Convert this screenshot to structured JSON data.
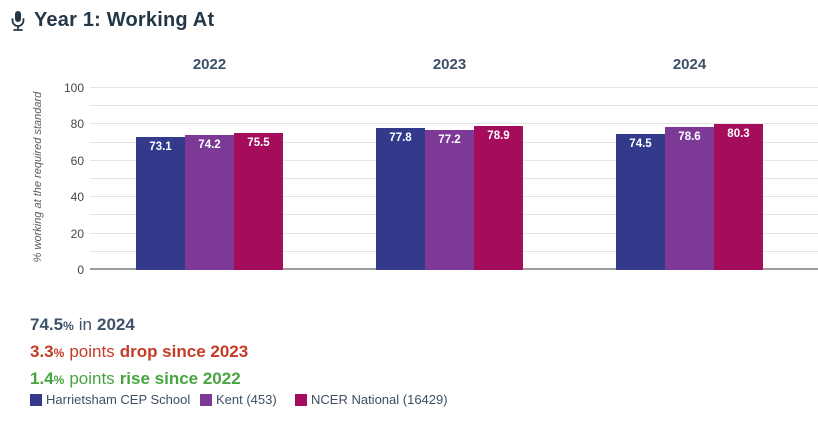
{
  "header": {
    "title": "Year 1: Working At",
    "icon": "microphone-icon"
  },
  "summary": {
    "line1": {
      "value": "74.5",
      "pct": "%",
      "mid": "in",
      "emph": "2024"
    },
    "line2": {
      "value": "3.3",
      "pct": "%",
      "mid": "points",
      "emph": "drop since 2023"
    },
    "line3": {
      "value": "1.4",
      "pct": "%",
      "mid": "points",
      "emph": "rise since 2022"
    }
  },
  "colors": {
    "title": "#243746",
    "year_header": "#3d5066",
    "summary_navy": "#3d5269",
    "summary_red": "#c43b26",
    "summary_green": "#49a43f",
    "gridline": "#e4e4e4",
    "axis_line": "#9b9b9b"
  },
  "chart_data": {
    "type": "bar",
    "title": "Year 1: Working At",
    "categories": [
      "2022",
      "2023",
      "2024"
    ],
    "series": [
      {
        "name": "Harrietsham CEP School",
        "color": "#333a8c",
        "values": [
          73.1,
          77.8,
          74.5
        ]
      },
      {
        "name": "Kent (453)",
        "color": "#7c3a96",
        "values": [
          74.2,
          77.2,
          78.6
        ]
      },
      {
        "name": "NCER National (16429)",
        "color": "#a50d5c",
        "values": [
          75.5,
          78.9,
          80.3
        ]
      }
    ],
    "ylabel": "% working at the required standard",
    "ylim": [
      0,
      100
    ],
    "yticks": [
      0,
      20,
      40,
      60,
      80,
      100
    ],
    "gridline_step": 10,
    "grid": true,
    "legend_position": "bottom-left",
    "value_labels": true
  }
}
